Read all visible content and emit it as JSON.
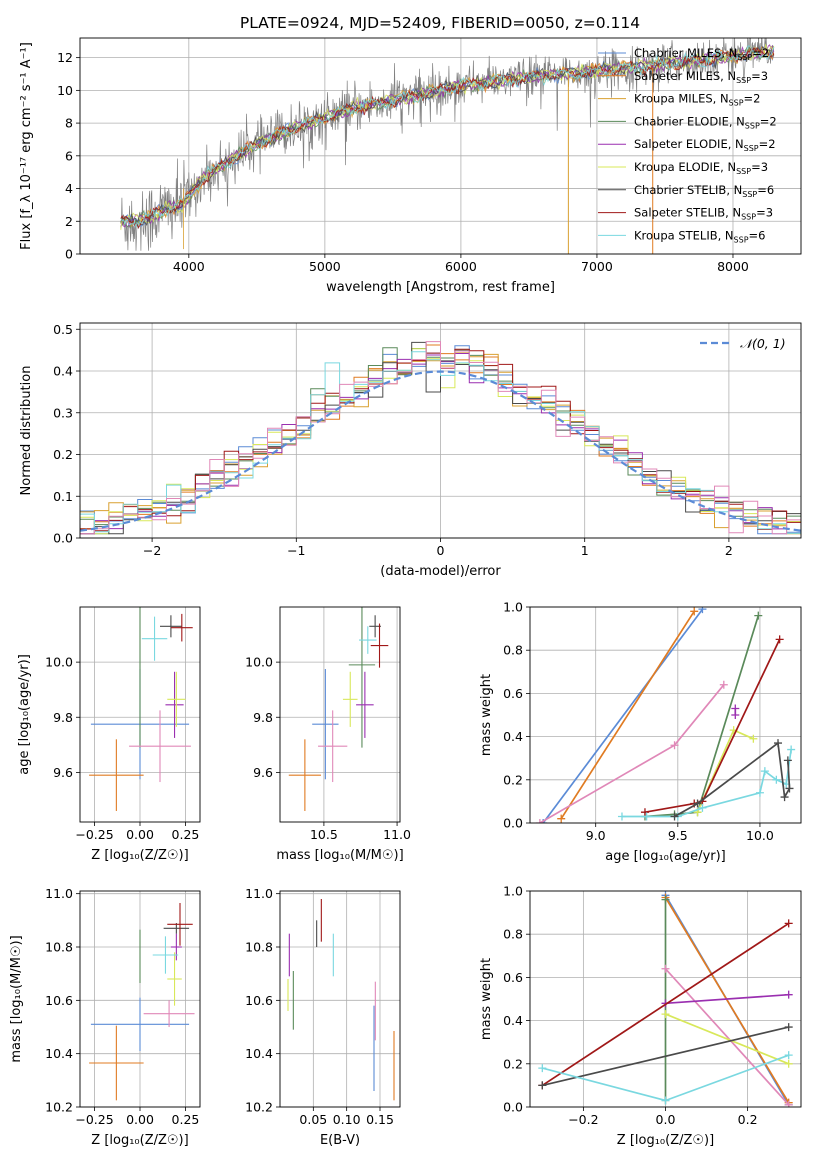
{
  "figure_title": "PLATE=0924, MJD=52409, FIBERID=0050, z=0.114",
  "colors": {
    "Chabrier MILES": "#5b8bd6",
    "Salpeter MILES": "#e07b22",
    "Kroupa MILES": "#d9a030",
    "Chabrier ELODIE": "#5a8a5a",
    "Salpeter ELODIE": "#9a2fb0",
    "Kroupa ELODIE": "#d8e85a",
    "Chabrier STELIB": "#4a4a4a",
    "Salpeter STELIB": "#a01818",
    "Kroupa STELIB": "#7ad8e0",
    "pink": "#e088b8",
    "spectrum": "#808080",
    "gaussian": "#5b8bd6"
  },
  "chart_data": [
    {
      "id": "spectrum",
      "type": "line",
      "title": "",
      "xlabel": "wavelength [Angstrom, rest frame]",
      "ylabel": "Flux [f_λ 10⁻¹⁷ erg cm⁻² s⁻¹ A⁻¹]",
      "xlim": [
        3200,
        8500
      ],
      "ylim": [
        0,
        13.2
      ],
      "xticks": [
        4000,
        5000,
        6000,
        7000,
        8000
      ],
      "yticks": [
        0,
        2,
        4,
        6,
        8,
        10,
        12
      ],
      "legend": {
        "placement": "upper-right",
        "entries": [
          {
            "name": "Chabrier MILES",
            "sub": "SSP",
            "n": "2"
          },
          {
            "name": "Salpeter MILES",
            "sub": "SSP",
            "n": "3"
          },
          {
            "name": "Kroupa MILES",
            "sub": "SSP",
            "n": "2"
          },
          {
            "name": "Chabrier ELODIE",
            "sub": "SSP",
            "n": "2"
          },
          {
            "name": "Salpeter ELODIE",
            "sub": "SSP",
            "n": "2"
          },
          {
            "name": "Kroupa ELODIE",
            "sub": "SSP",
            "n": "3"
          },
          {
            "name": "Chabrier STELIB",
            "sub": "SSP",
            "n": "6"
          },
          {
            "name": "Salpeter STELIB",
            "sub": "SSP",
            "n": "3"
          },
          {
            "name": "Kroupa STELIB",
            "sub": "SSP",
            "n": "6"
          }
        ]
      },
      "continuum": {
        "x": [
          3500,
          3700,
          3850,
          3950,
          4100,
          4300,
          4500,
          4800,
          5000,
          5200,
          5500,
          5800,
          6000,
          6300,
          6600,
          6900,
          7100,
          7400,
          7700,
          8000,
          8300
        ],
        "y": [
          1.9,
          2.2,
          2.8,
          3.0,
          4.6,
          5.7,
          6.7,
          7.8,
          8.3,
          8.9,
          9.4,
          9.9,
          10.3,
          10.6,
          10.9,
          11.1,
          11.3,
          11.5,
          11.8,
          12.1,
          12.4
        ]
      }
    },
    {
      "id": "residuals",
      "type": "histogram",
      "xlabel": "(data-model)/error",
      "ylabel": "Normed distribution",
      "xlim": [
        -2.5,
        2.5
      ],
      "ylim": [
        0,
        0.515
      ],
      "xticks": [
        -2,
        -1,
        0,
        1,
        2
      ],
      "yticks": [
        0.0,
        0.1,
        0.2,
        0.3,
        0.4,
        0.5
      ],
      "legend": {
        "placement": "upper-right",
        "label": "𝒩(0, 1)"
      },
      "bin_width": 0.1,
      "gaussian": {
        "mu": 0,
        "sigma": 1
      }
    },
    {
      "id": "age_vs_Z",
      "type": "errorbar",
      "xlabel": "Z [log₁₀(Z/Z☉)]",
      "ylabel": "age  [log₁₀(age/yr)]",
      "xlim": [
        -0.33,
        0.33
      ],
      "ylim": [
        9.42,
        10.2
      ],
      "xticks": [
        -0.25,
        0.0,
        0.25
      ],
      "yticks": [
        9.6,
        9.8,
        10.0
      ],
      "points": [
        {
          "model": "Chabrier MILES",
          "x": 0.0,
          "y": 9.775,
          "xerr": 0.27,
          "yerr": 0.2
        },
        {
          "model": "Salpeter MILES",
          "x": -0.13,
          "y": 9.59,
          "xerr": 0.15,
          "yerr": 0.13
        },
        {
          "model": "Chabrier ELODIE",
          "x": 0.0,
          "y": 9.99,
          "xerr": 0.0,
          "yerr": 0.3
        },
        {
          "model": "Salpeter ELODIE",
          "x": 0.19,
          "y": 9.845,
          "xerr": 0.05,
          "yerr": 0.12
        },
        {
          "model": "Kroupa ELODIE",
          "x": 0.2,
          "y": 9.865,
          "xerr": 0.05,
          "yerr": 0.1
        },
        {
          "model": "Chabrier STELIB",
          "x": 0.17,
          "y": 10.13,
          "xerr": 0.06,
          "yerr": 0.04
        },
        {
          "model": "Salpeter STELIB",
          "x": 0.23,
          "y": 10.125,
          "xerr": 0.06,
          "yerr": 0.05
        },
        {
          "model": "Kroupa STELIB",
          "x": 0.08,
          "y": 10.085,
          "xerr": 0.07,
          "yerr": 0.08
        },
        {
          "model": "pink",
          "x": 0.11,
          "y": 9.695,
          "xerr": 0.17,
          "yerr": 0.13
        }
      ]
    },
    {
      "id": "age_vs_mass",
      "type": "errorbar",
      "xlabel": "mass [log₁₀(M/M☉)]",
      "ylabel": "",
      "xlim": [
        10.2,
        11.02
      ],
      "ylim": [
        9.42,
        10.2
      ],
      "xticks": [
        10.5,
        11.0
      ],
      "yticks": [
        9.6,
        9.8,
        10.0
      ],
      "points": [
        {
          "model": "Chabrier MILES",
          "x": 10.51,
          "y": 9.775,
          "xerr": 0.09,
          "yerr": 0.2
        },
        {
          "model": "Salpeter MILES",
          "x": 10.37,
          "y": 9.59,
          "xerr": 0.11,
          "yerr": 0.13
        },
        {
          "model": "Chabrier ELODIE",
          "x": 10.76,
          "y": 9.99,
          "xerr": 0.09,
          "yerr": 0.3
        },
        {
          "model": "Salpeter ELODIE",
          "x": 10.78,
          "y": 9.845,
          "xerr": 0.06,
          "yerr": 0.12
        },
        {
          "model": "Kroupa ELODIE",
          "x": 10.68,
          "y": 9.865,
          "xerr": 0.05,
          "yerr": 0.1
        },
        {
          "model": "Chabrier STELIB",
          "x": 10.85,
          "y": 10.13,
          "xerr": 0.04,
          "yerr": 0.04
        },
        {
          "model": "Salpeter STELIB",
          "x": 10.88,
          "y": 10.06,
          "xerr": 0.06,
          "yerr": 0.08
        },
        {
          "model": "Kroupa STELIB",
          "x": 10.8,
          "y": 10.08,
          "xerr": 0.06,
          "yerr": 0.05
        },
        {
          "model": "pink",
          "x": 10.56,
          "y": 9.695,
          "xerr": 0.1,
          "yerr": 0.13
        }
      ]
    },
    {
      "id": "mass_vs_Z",
      "type": "errorbar",
      "xlabel": "Z [log₁₀(Z/Z☉)]",
      "ylabel": "mass [log₁₀(M/M☉)]",
      "xlim": [
        -0.33,
        0.33
      ],
      "ylim": [
        10.2,
        11.01
      ],
      "xticks": [
        -0.25,
        0.0,
        0.25
      ],
      "yticks": [
        10.2,
        10.4,
        10.6,
        10.8,
        11.0
      ],
      "points": [
        {
          "model": "Chabrier MILES",
          "x": 0.0,
          "y": 10.51,
          "xerr": 0.27,
          "yerr": 0.1
        },
        {
          "model": "Salpeter MILES",
          "x": -0.13,
          "y": 10.365,
          "xerr": 0.15,
          "yerr": 0.14
        },
        {
          "model": "Chabrier ELODIE",
          "x": 0.0,
          "y": 10.765,
          "xerr": 0.0,
          "yerr": 0.1
        },
        {
          "model": "Salpeter ELODIE",
          "x": 0.2,
          "y": 10.8,
          "xerr": 0.03,
          "yerr": 0.05
        },
        {
          "model": "Kroupa ELODIE",
          "x": 0.19,
          "y": 10.68,
          "xerr": 0.04,
          "yerr": 0.1
        },
        {
          "model": "Chabrier STELIB",
          "x": 0.2,
          "y": 10.87,
          "xerr": 0.07,
          "yerr": 0.02
        },
        {
          "model": "Salpeter STELIB",
          "x": 0.22,
          "y": 10.885,
          "xerr": 0.07,
          "yerr": 0.08
        },
        {
          "model": "Kroupa STELIB",
          "x": 0.14,
          "y": 10.77,
          "xerr": 0.07,
          "yerr": 0.07
        },
        {
          "model": "pink",
          "x": 0.16,
          "y": 10.55,
          "xerr": 0.14,
          "yerr": 0.05
        }
      ]
    },
    {
      "id": "mass_vs_EBV",
      "type": "errorbar",
      "xlabel": "E(B-V)",
      "ylabel": "",
      "xlim": [
        0.0,
        0.18
      ],
      "ylim": [
        10.2,
        11.01
      ],
      "xticks": [
        0.05,
        0.1,
        0.15
      ],
      "yticks": [
        10.2,
        10.4,
        10.6,
        10.8,
        11.0
      ],
      "points": [
        {
          "model": "Chabrier MILES",
          "x": 0.141,
          "y": 10.42,
          "xerr": 0.0,
          "yerr": 0.16
        },
        {
          "model": "Salpeter MILES",
          "x": 0.171,
          "y": 10.355,
          "xerr": 0.0,
          "yerr": 0.13
        },
        {
          "model": "Chabrier ELODIE",
          "x": 0.02,
          "y": 10.6,
          "xerr": 0.0,
          "yerr": 0.11
        },
        {
          "model": "Salpeter ELODIE",
          "x": 0.014,
          "y": 10.77,
          "xerr": 0.0,
          "yerr": 0.08
        },
        {
          "model": "Kroupa ELODIE",
          "x": 0.012,
          "y": 10.62,
          "xerr": 0.0,
          "yerr": 0.06
        },
        {
          "model": "Chabrier STELIB",
          "x": 0.055,
          "y": 10.85,
          "xerr": 0.0,
          "yerr": 0.05
        },
        {
          "model": "Salpeter STELIB",
          "x": 0.062,
          "y": 10.9,
          "xerr": 0.0,
          "yerr": 0.08
        },
        {
          "model": "Kroupa STELIB",
          "x": 0.08,
          "y": 10.77,
          "xerr": 0.0,
          "yerr": 0.08
        },
        {
          "model": "pink",
          "x": 0.143,
          "y": 10.56,
          "xerr": 0.0,
          "yerr": 0.11
        }
      ]
    },
    {
      "id": "weight_vs_age",
      "type": "line",
      "xlabel": "age  [log₁₀(age/yr)]",
      "ylabel": "mass weight",
      "xlim": [
        8.6,
        10.25
      ],
      "ylim": [
        0,
        1
      ],
      "xticks": [
        9.0,
        9.5,
        10.0
      ],
      "yticks": [
        0.0,
        0.2,
        0.4,
        0.6,
        0.8,
        1.0
      ],
      "series": [
        {
          "model": "Chabrier MILES",
          "x": [
            8.68,
            9.65
          ],
          "y": [
            0.0,
            0.99
          ]
        },
        {
          "model": "Salpeter MILES",
          "x": [
            8.79,
            9.6
          ],
          "y": [
            0.02,
            0.98
          ]
        },
        {
          "model": "pink",
          "x": [
            8.66,
            9.48,
            9.78
          ],
          "y": [
            0.0,
            0.36,
            0.64
          ]
        },
        {
          "model": "Chabrier ELODIE",
          "x": [
            9.3,
            9.48,
            9.62,
            9.99
          ],
          "y": [
            0.03,
            0.04,
            0.05,
            0.96
          ]
        },
        {
          "model": "Kroupa ELODIE",
          "x": [
            9.62,
            9.84,
            9.96
          ],
          "y": [
            0.05,
            0.43,
            0.39
          ]
        },
        {
          "model": "Salpeter ELODIE",
          "x": [
            9.85,
            9.85
          ],
          "y": [
            0.5,
            0.53
          ]
        },
        {
          "model": "Salpeter STELIB",
          "x": [
            9.3,
            9.6,
            9.65,
            10.12
          ],
          "y": [
            0.05,
            0.09,
            0.1,
            0.85
          ]
        },
        {
          "model": "Kroupa STELIB",
          "x": [
            9.16,
            9.31,
            9.5,
            9.65,
            10.0,
            10.03,
            10.1,
            10.16,
            10.19
          ],
          "y": [
            0.03,
            0.03,
            0.03,
            0.07,
            0.14,
            0.24,
            0.2,
            0.18,
            0.34
          ]
        },
        {
          "model": "Chabrier STELIB",
          "x": [
            9.48,
            9.62,
            10.11,
            10.15,
            10.18,
            10.17
          ],
          "y": [
            0.03,
            0.09,
            0.37,
            0.12,
            0.16,
            0.29
          ]
        }
      ]
    },
    {
      "id": "weight_vs_Z",
      "type": "line",
      "xlabel": "Z [log₁₀(Z/Z☉)]",
      "ylabel": "mass weight",
      "xlim": [
        -0.33,
        0.33
      ],
      "ylim": [
        0,
        1
      ],
      "xticks": [
        -0.2,
        0.0,
        0.2
      ],
      "yticks": [
        0.0,
        0.2,
        0.4,
        0.6,
        0.8,
        1.0
      ],
      "series": [
        {
          "model": "Chabrier MILES",
          "x": [
            0.0,
            0.3
          ],
          "y": [
            0.98,
            0.01
          ]
        },
        {
          "model": "Salpeter MILES",
          "x": [
            0.0,
            0.3
          ],
          "y": [
            0.97,
            0.02
          ]
        },
        {
          "model": "Chabrier ELODIE",
          "x": [
            0.0,
            0.0
          ],
          "y": [
            0.03,
            0.96
          ]
        },
        {
          "model": "pink",
          "x": [
            0.0,
            0.3
          ],
          "y": [
            0.64,
            0.01
          ]
        },
        {
          "model": "Kroupa ELODIE",
          "x": [
            0.0,
            0.3
          ],
          "y": [
            0.43,
            0.2
          ]
        },
        {
          "model": "Salpeter ELODIE",
          "x": [
            0.0,
            0.3
          ],
          "y": [
            0.48,
            0.52
          ]
        },
        {
          "model": "Salpeter STELIB",
          "x": [
            -0.3,
            0.3
          ],
          "y": [
            0.1,
            0.85
          ]
        },
        {
          "model": "Chabrier STELIB",
          "x": [
            -0.3,
            0.3
          ],
          "y": [
            0.1,
            0.37
          ]
        },
        {
          "model": "Kroupa STELIB",
          "x": [
            -0.3,
            0.0,
            0.3
          ],
          "y": [
            0.18,
            0.03,
            0.24
          ]
        }
      ]
    }
  ]
}
